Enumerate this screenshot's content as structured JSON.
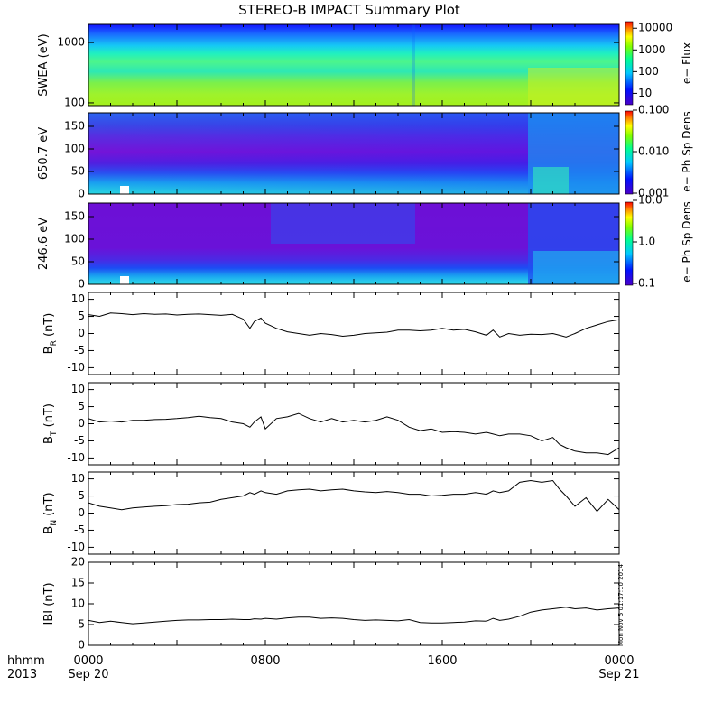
{
  "title": "STEREO-B IMPACT Summary Plot",
  "stamp": "Mon Nov  5 01:17:10 2014",
  "time_axis": {
    "row1_labels": [
      "hhmm",
      "0000",
      "0800",
      "1600",
      "0000"
    ],
    "row2_labels": [
      "2013",
      "Sep 20",
      "Sep 21"
    ]
  },
  "chart_data": [
    {
      "type": "heatmap",
      "ylabel": "SWEA (eV)",
      "y_scale": "log",
      "ylim": [
        90,
        2000
      ],
      "yticks": [
        "1000",
        "100"
      ],
      "xlim": [
        0,
        24
      ],
      "colorbar": {
        "label": "e− Flux",
        "scale": "log",
        "ticks": [
          "10000",
          "1000",
          "100",
          "10"
        ],
        "range": [
          3,
          20000
        ]
      }
    },
    {
      "type": "heatmap",
      "ylabel": "650.7 eV",
      "ylim": [
        0,
        180
      ],
      "yticks": [
        "150",
        "100",
        "50",
        "0"
      ],
      "xlim": [
        0,
        24
      ],
      "colorbar": {
        "label": "e− Ph Sp Dens",
        "scale": "log",
        "ticks": [
          "0.100",
          "0.010",
          "0.001"
        ],
        "range": [
          0.001,
          0.1
        ]
      }
    },
    {
      "type": "heatmap",
      "ylabel": "246.6 eV",
      "ylim": [
        0,
        180
      ],
      "yticks": [
        "150",
        "100",
        "50",
        "0"
      ],
      "xlim": [
        0,
        24
      ],
      "colorbar": {
        "label": "e− Ph Sp Dens",
        "scale": "log",
        "ticks": [
          "10.0",
          "1.0",
          "0.1"
        ],
        "range": [
          0.1,
          10
        ]
      }
    },
    {
      "type": "line",
      "ylabel": "B_R (nT)",
      "ylabel_main": "B",
      "ylabel_sub": "R",
      "ylabel_tail": " (nT)",
      "ylim": [
        -12,
        12
      ],
      "yticks": [
        "10",
        "5",
        "0",
        "-5",
        "-10"
      ],
      "xlim": [
        0,
        24
      ],
      "x": [
        0,
        0.5,
        1,
        1.5,
        2,
        2.5,
        3,
        3.5,
        4,
        4.5,
        5,
        5.5,
        6,
        6.5,
        7,
        7.3,
        7.5,
        7.8,
        8,
        8.5,
        9,
        9.5,
        10,
        10.5,
        11,
        11.5,
        12,
        12.5,
        13,
        13.5,
        14,
        14.5,
        15,
        15.5,
        16,
        16.5,
        17,
        17.5,
        18,
        18.3,
        18.6,
        19,
        19.5,
        20,
        20.5,
        21,
        21.3,
        21.6,
        22,
        22.5,
        23,
        23.5,
        24
      ],
      "y": [
        5.5,
        5,
        6,
        5.8,
        5.5,
        5.8,
        5.6,
        5.7,
        5.4,
        5.6,
        5.7,
        5.5,
        5.3,
        5.6,
        4.2,
        1.5,
        3.5,
        4.5,
        3,
        1.5,
        0.5,
        0,
        -0.5,
        0,
        -0.3,
        -0.8,
        -0.5,
        0,
        0.2,
        0.4,
        1,
        1,
        0.8,
        1,
        1.5,
        1,
        1.2,
        0.5,
        -0.5,
        1,
        -1,
        0,
        -0.5,
        -0.2,
        -0.3,
        0,
        -0.5,
        -1,
        0,
        1.5,
        2.5,
        3.5,
        4
      ]
    },
    {
      "type": "line",
      "ylabel": "B_T (nT)",
      "ylabel_main": "B",
      "ylabel_sub": "T",
      "ylabel_tail": " (nT)",
      "ylim": [
        -12,
        12
      ],
      "yticks": [
        "10",
        "5",
        "0",
        "-5",
        "-10"
      ],
      "xlim": [
        0,
        24
      ],
      "x": [
        0,
        0.5,
        1,
        1.5,
        2,
        2.5,
        3,
        3.5,
        4,
        4.5,
        5,
        5.5,
        6,
        6.5,
        7,
        7.3,
        7.5,
        7.8,
        8,
        8.5,
        9,
        9.5,
        10,
        10.5,
        11,
        11.5,
        12,
        12.5,
        13,
        13.5,
        14,
        14.5,
        15,
        15.5,
        16,
        16.5,
        17,
        17.5,
        18,
        18.3,
        18.6,
        19,
        19.5,
        20,
        20.5,
        21,
        21.3,
        21.6,
        22,
        22.5,
        23,
        23.5,
        24
      ],
      "y": [
        1.5,
        0.5,
        0.8,
        0.5,
        1,
        1,
        1.2,
        1.3,
        1.5,
        1.8,
        2.2,
        1.8,
        1.5,
        0.5,
        0,
        -1,
        0.5,
        2,
        -1.5,
        1.5,
        2,
        3,
        1.5,
        0.5,
        1.5,
        0.5,
        1,
        0.5,
        1,
        2,
        1,
        -1,
        -2,
        -1.5,
        -2.5,
        -2.3,
        -2.5,
        -3,
        -2.5,
        -3,
        -3.5,
        -3,
        -3,
        -3.5,
        -5,
        -4,
        -6,
        -7,
        -8,
        -8.5,
        -8.5,
        -9,
        -7
      ]
    },
    {
      "type": "line",
      "ylabel": "B_N (nT)",
      "ylabel_main": "B",
      "ylabel_sub": "N",
      "ylabel_tail": " (nT)",
      "ylim": [
        -12,
        12
      ],
      "yticks": [
        "10",
        "5",
        "0",
        "-5",
        "-10"
      ],
      "xlim": [
        0,
        24
      ],
      "x": [
        0,
        0.5,
        1,
        1.5,
        2,
        2.5,
        3,
        3.5,
        4,
        4.5,
        5,
        5.5,
        6,
        6.5,
        7,
        7.3,
        7.5,
        7.8,
        8,
        8.5,
        9,
        9.5,
        10,
        10.5,
        11,
        11.5,
        12,
        12.5,
        13,
        13.5,
        14,
        14.5,
        15,
        15.5,
        16,
        16.5,
        17,
        17.5,
        18,
        18.3,
        18.6,
        19,
        19.5,
        20,
        20.5,
        21,
        21.3,
        21.6,
        22,
        22.5,
        23,
        23.5,
        24
      ],
      "y": [
        3,
        2,
        1.5,
        1,
        1.5,
        1.8,
        2,
        2.2,
        2.5,
        2.6,
        3,
        3.2,
        4,
        4.5,
        5,
        6,
        5.5,
        6.5,
        6,
        5.5,
        6.5,
        6.8,
        7,
        6.5,
        6.8,
        7,
        6.5,
        6.2,
        6,
        6.3,
        6,
        5.5,
        5.5,
        5,
        5.2,
        5.5,
        5.5,
        6,
        5.5,
        6.5,
        6,
        6.5,
        9,
        9.5,
        9,
        9.5,
        7,
        5,
        2,
        4.5,
        0.5,
        4,
        1
      ]
    },
    {
      "type": "line",
      "ylabel": "|B| (nT)",
      "ylabel_main": "IBI (nT)",
      "ylabel_sub": "",
      "ylabel_tail": "",
      "ylim": [
        0,
        20
      ],
      "yticks": [
        "20",
        "15",
        "10",
        "5",
        "0"
      ],
      "xlim": [
        0,
        24
      ],
      "x": [
        0,
        0.5,
        1,
        1.5,
        2,
        2.5,
        3,
        3.5,
        4,
        4.5,
        5,
        5.5,
        6,
        6.5,
        7,
        7.3,
        7.5,
        7.8,
        8,
        8.5,
        9,
        9.5,
        10,
        10.5,
        11,
        11.5,
        12,
        12.5,
        13,
        13.5,
        14,
        14.5,
        15,
        15.5,
        16,
        16.5,
        17,
        17.5,
        18,
        18.3,
        18.6,
        19,
        19.5,
        20,
        20.5,
        21,
        21.3,
        21.6,
        22,
        22.5,
        23,
        23.5,
        24
      ],
      "y": [
        6,
        5.5,
        5.8,
        5.5,
        5.2,
        5.4,
        5.6,
        5.8,
        6,
        6.1,
        6.1,
        6.2,
        6.2,
        6.3,
        6.2,
        6.2,
        6.4,
        6.3,
        6.5,
        6.3,
        6.6,
        6.8,
        6.8,
        6.5,
        6.6,
        6.5,
        6.2,
        6,
        6.1,
        6,
        5.9,
        6.2,
        5.5,
        5.4,
        5.4,
        5.5,
        5.6,
        5.9,
        5.8,
        6.5,
        6,
        6.3,
        7,
        8,
        8.5,
        8.8,
        9,
        9.2,
        8.8,
        9,
        8.5,
        8.8,
        9
      ]
    }
  ]
}
